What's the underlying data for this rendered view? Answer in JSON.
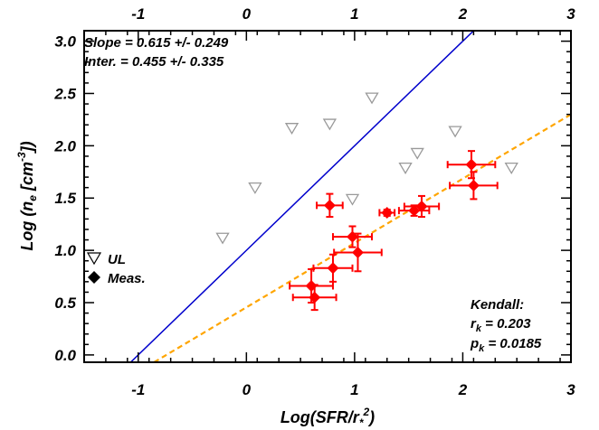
{
  "chart_data": {
    "type": "scatter",
    "xlabel_main": "Log(SFR/r",
    "xlabel_sub": "*",
    "xlabel_sup": "2",
    "xlabel_close": ")",
    "ylabel_pre": "Log (n",
    "ylabel_sub": "e",
    "ylabel_mid": " [cm",
    "ylabel_sup": "-3",
    "ylabel_close": "])",
    "xlim": [
      -1.5,
      3.0
    ],
    "ylim": [
      -0.07,
      3.1
    ],
    "x_ticks": [
      -1,
      0,
      1,
      2,
      3
    ],
    "x_tick_labels": [
      "-1",
      "0",
      "1",
      "2",
      "3"
    ],
    "y_ticks": [
      0.0,
      0.5,
      1.0,
      1.5,
      2.0,
      2.5,
      3.0
    ],
    "y_tick_labels": [
      "0.0",
      "0.5",
      "1.0",
      "1.5",
      "2.0",
      "2.5",
      "3.0"
    ],
    "fit_text": [
      "Slope = 0.615 +/- 0.249",
      "Inter.  = 0.455 +/- 0.335"
    ],
    "legend": {
      "placement": "left",
      "entries": [
        {
          "label": "UL",
          "marker": "triangle-down-open"
        },
        {
          "label": "Meas.",
          "marker": "diamond-filled"
        }
      ]
    },
    "kendall": {
      "title": "Kendall:",
      "rk_sym": "r",
      "rk_sub": "k",
      "rk_val": " = 0.203",
      "pk_sym": "p",
      "pk_sub": "k",
      "pk_val": " = 0.0185"
    },
    "lines": [
      {
        "name": "one-to-one",
        "style": "solid",
        "color": "#0000cc",
        "slope": 1.0,
        "intercept": 1.0
      },
      {
        "name": "fit",
        "style": "dashed",
        "color": "#ffa500",
        "slope": 0.615,
        "intercept": 0.455
      }
    ],
    "upper_limits": {
      "color": "#999999",
      "points": [
        {
          "x": -0.22,
          "y": 1.12
        },
        {
          "x": 0.08,
          "y": 1.6
        },
        {
          "x": 0.42,
          "y": 2.17
        },
        {
          "x": 0.77,
          "y": 2.21
        },
        {
          "x": 0.98,
          "y": 1.49
        },
        {
          "x": 1.16,
          "y": 2.46
        },
        {
          "x": 1.47,
          "y": 1.79
        },
        {
          "x": 1.58,
          "y": 1.93
        },
        {
          "x": 1.93,
          "y": 2.14
        },
        {
          "x": 2.45,
          "y": 1.79
        }
      ]
    },
    "measurements": {
      "color": "#ff0000",
      "points": [
        {
          "x": 0.77,
          "y": 1.43,
          "xerr": 0.12,
          "yerr": 0.11
        },
        {
          "x": 0.98,
          "y": 1.13,
          "xerr": 0.18,
          "yerr": 0.1
        },
        {
          "x": 1.3,
          "y": 1.36,
          "xerr": 0.07,
          "yerr": 0.03
        },
        {
          "x": 1.55,
          "y": 1.38,
          "xerr": 0.14,
          "yerr": 0.05
        },
        {
          "x": 1.62,
          "y": 1.42,
          "xerr": 0.16,
          "yerr": 0.1
        },
        {
          "x": 2.08,
          "y": 1.82,
          "xerr": 0.22,
          "yerr": 0.13
        },
        {
          "x": 2.1,
          "y": 1.62,
          "xerr": 0.22,
          "yerr": 0.13
        },
        {
          "x": 1.03,
          "y": 0.98,
          "xerr": 0.22,
          "yerr": 0.18
        },
        {
          "x": 0.8,
          "y": 0.83,
          "xerr": 0.18,
          "yerr": 0.13
        },
        {
          "x": 0.6,
          "y": 0.66,
          "xerr": 0.2,
          "yerr": 0.16
        },
        {
          "x": 0.63,
          "y": 0.55,
          "xerr": 0.2,
          "yerr": 0.12
        }
      ]
    }
  }
}
